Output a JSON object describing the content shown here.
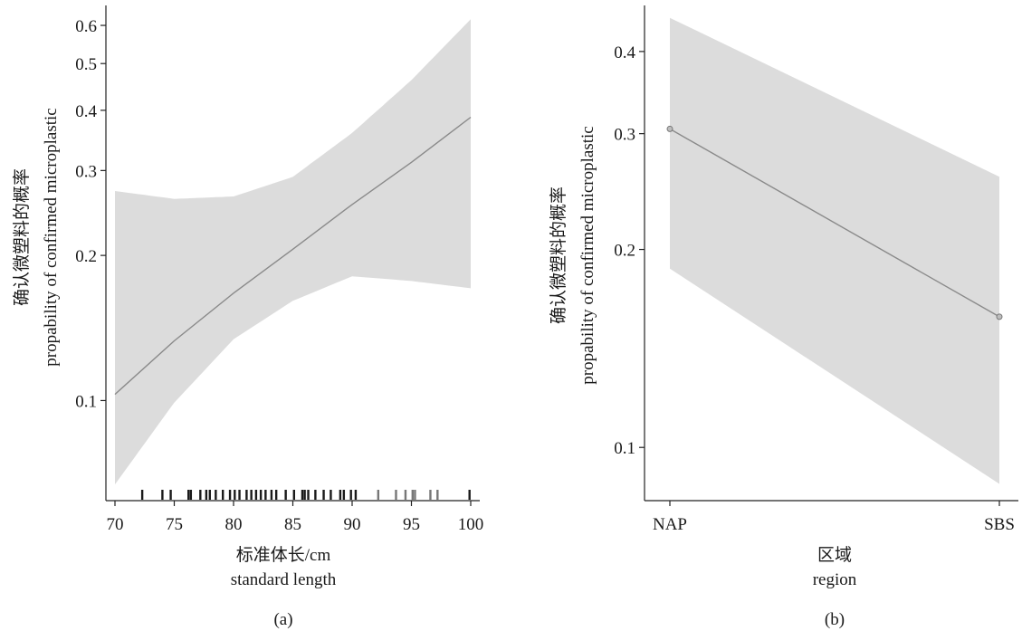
{
  "chart_data": [
    {
      "type": "line",
      "panel_label": "(a)",
      "xlabel_zh": "标准体长/cm",
      "xlabel_en": "standard length",
      "ylabel_zh": "确认微塑料的概率",
      "ylabel_en": "propability of confirmed microplastic",
      "y_scale": "log",
      "xlim": [
        69.8,
        100.2
      ],
      "ylim": [
        0.062,
        0.66
      ],
      "x_ticks": [
        70,
        75,
        80,
        85,
        90,
        95,
        100
      ],
      "y_ticks": [
        0.1,
        0.2,
        0.3,
        0.4,
        0.5,
        0.6
      ],
      "x_tick_labels": [
        "70",
        "75",
        "80",
        "85",
        "90",
        "95",
        "100"
      ],
      "y_tick_labels": [
        "0.1",
        "0.2",
        "0.3",
        "0.4",
        "0.5",
        "0.6"
      ],
      "series": [
        {
          "x": [
            70,
            75,
            80,
            85,
            90,
            95,
            100
          ],
          "y": [
            0.103,
            0.133,
            0.167,
            0.206,
            0.255,
            0.312,
            0.387
          ],
          "lower": [
            0.067,
            0.099,
            0.134,
            0.161,
            0.181,
            0.177,
            0.171
          ],
          "upper": [
            0.272,
            0.262,
            0.265,
            0.291,
            0.359,
            0.462,
            0.618
          ]
        }
      ],
      "rug_x": [
        72.3,
        74.0,
        74.7,
        76.2,
        76.4,
        77.2,
        77.7,
        78.0,
        78.5,
        79.1,
        79.7,
        80.1,
        80.5,
        81.1,
        81.5,
        81.9,
        82.3,
        82.7,
        83.2,
        83.6,
        84.4,
        85.1,
        85.8,
        86.0,
        86.3,
        86.9,
        87.6,
        88.2,
        89.0,
        89.3,
        89.9,
        90.3,
        92.2,
        93.7,
        94.5,
        95.1,
        95.3,
        96.6,
        97.2,
        99.9
      ],
      "grid": false,
      "legend": "none"
    },
    {
      "type": "line",
      "panel_label": "(b)",
      "xlabel_zh": "区域",
      "xlabel_en": "region",
      "ylabel_zh": "确认微塑料的概率",
      "ylabel_en": "propability of confirmed microplastic",
      "y_scale": "log",
      "ylim": [
        0.083,
        0.47
      ],
      "categories": [
        "NAP",
        "SBS"
      ],
      "y_ticks": [
        0.1,
        0.2,
        0.3,
        0.4
      ],
      "y_tick_labels": [
        "0.1",
        "0.2",
        "0.3",
        "0.4"
      ],
      "series": [
        {
          "values": [
            0.305,
            0.158
          ],
          "lower": [
            0.187,
            0.088
          ],
          "upper": [
            0.45,
            0.258
          ]
        }
      ],
      "grid": false,
      "legend": "none"
    }
  ]
}
